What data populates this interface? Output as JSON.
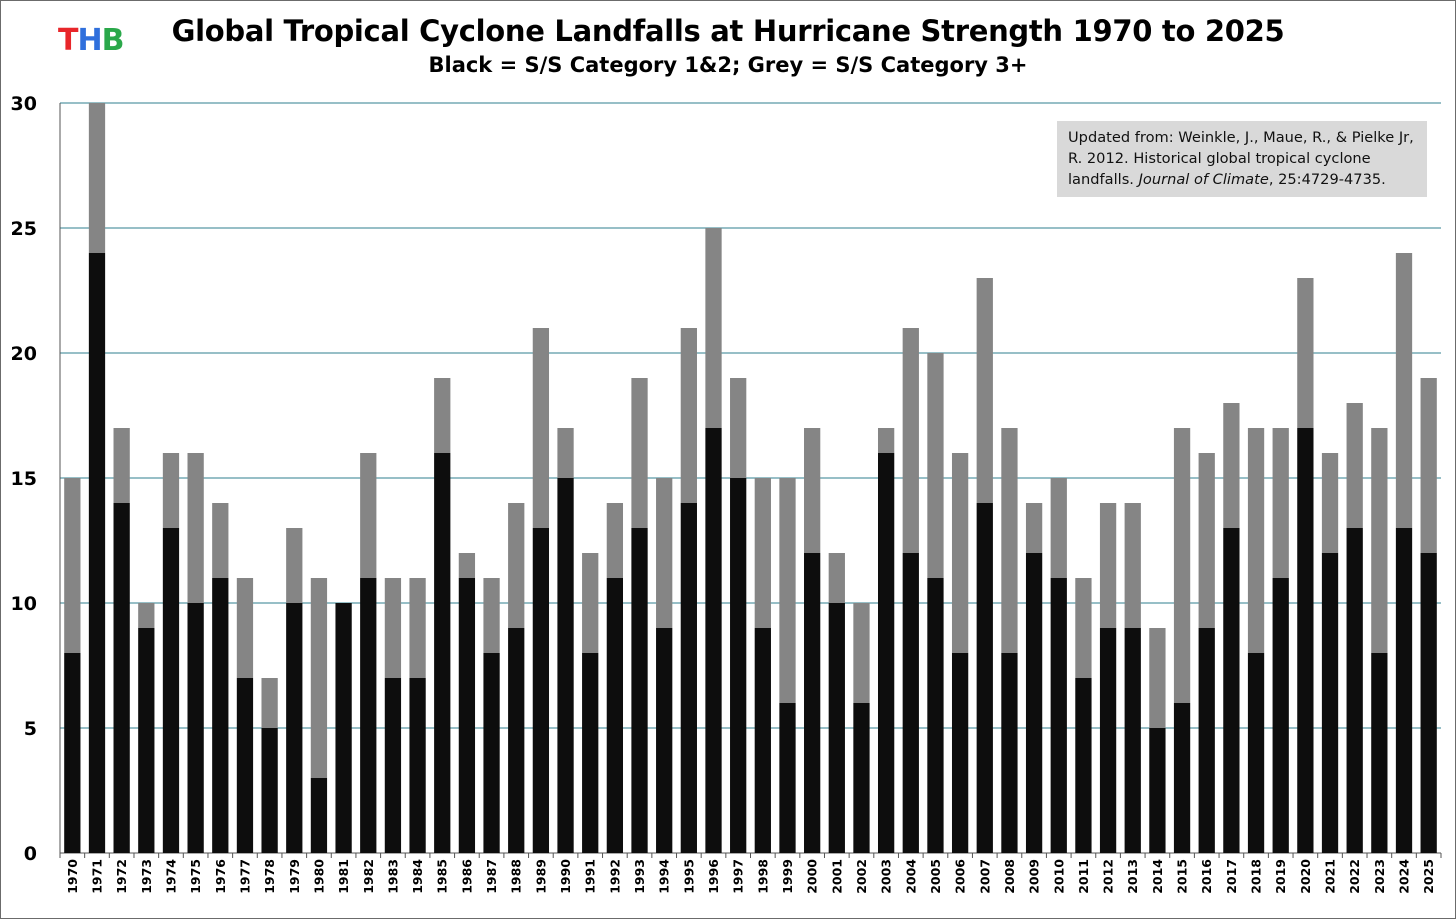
{
  "logo": {
    "letters": [
      "T",
      "H",
      "B"
    ],
    "colors": [
      "#e8262a",
      "#2f6fdc",
      "#2aa84a"
    ]
  },
  "title": "Global Tropical Cyclone Landfalls at Hurricane Strength 1970 to 2025",
  "subtitle": "Black = S/S Category 1&2; Grey = S/S Category 3+",
  "source": {
    "pre": "Updated from: Weinkle, J., Maue, R., & Pielke Jr, R. 2012. Historical global tropical cyclone landfalls.",
    "journal": "Journal of Climate",
    "post": ", 25:4729-4735."
  },
  "colors": {
    "cat12": "#0d0d0d",
    "cat3plus": "#858585",
    "grid": "#2f7f8f"
  },
  "chart_data": {
    "type": "bar",
    "stacked": true,
    "title": "Global Tropical Cyclone Landfalls at Hurricane Strength 1970 to 2025",
    "subtitle": "Black = S/S Category 1&2; Grey = S/S Category 3+",
    "xlabel": "",
    "ylabel": "",
    "ylim": [
      0,
      30
    ],
    "yticks": [
      0,
      5,
      10,
      15,
      20,
      25,
      30
    ],
    "grid": true,
    "categories": [
      "1970",
      "1971",
      "1972",
      "1973",
      "1974",
      "1975",
      "1976",
      "1977",
      "1978",
      "1979",
      "1980",
      "1981",
      "1982",
      "1983",
      "1984",
      "1985",
      "1986",
      "1987",
      "1988",
      "1989",
      "1990",
      "1991",
      "1992",
      "1993",
      "1994",
      "1995",
      "1996",
      "1997",
      "1998",
      "1999",
      "2000",
      "2001",
      "2002",
      "2003",
      "2004",
      "2005",
      "2006",
      "2007",
      "2008",
      "2009",
      "2010",
      "2011",
      "2012",
      "2013",
      "2014",
      "2015",
      "2016",
      "2017",
      "2018",
      "2019",
      "2020",
      "2021",
      "2022",
      "2023",
      "2024",
      "2025"
    ],
    "series": [
      {
        "color": "#0d0d0d",
        "values": [
          8,
          24,
          14,
          9,
          13,
          10,
          11,
          7,
          5,
          10,
          3,
          10,
          11,
          7,
          7,
          16,
          11,
          8,
          9,
          13,
          15,
          8,
          11,
          13,
          9,
          14,
          17,
          15,
          9,
          6,
          12,
          10,
          6,
          16,
          12,
          11,
          8,
          14,
          8,
          12,
          11,
          7,
          9,
          9,
          5,
          6,
          9,
          13,
          8,
          11,
          17,
          12,
          13,
          8,
          13,
          12
        ]
      },
      {
        "color": "#858585",
        "values": [
          7,
          6,
          3,
          1,
          3,
          6,
          3,
          4,
          2,
          3,
          8,
          0,
          5,
          4,
          4,
          3,
          1,
          3,
          5,
          8,
          2,
          4,
          3,
          6,
          6,
          7,
          8,
          4,
          6,
          9,
          5,
          2,
          4,
          1,
          9,
          9,
          8,
          9,
          9,
          2,
          4,
          4,
          5,
          5,
          4,
          11,
          7,
          5,
          9,
          6,
          6,
          4,
          5,
          9,
          11,
          7
        ]
      }
    ],
    "totals": [
      15,
      30,
      17,
      10,
      16,
      16,
      14,
      11,
      7,
      13,
      11,
      10,
      16,
      11,
      11,
      19,
      12,
      11,
      14,
      21,
      17,
      12,
      14,
      19,
      15,
      21,
      25,
      19,
      15,
      15,
      17,
      12,
      10,
      17,
      21,
      20,
      16,
      23,
      17,
      14,
      15,
      11,
      14,
      14,
      9,
      17,
      16,
      18,
      17,
      17,
      23,
      16,
      18,
      17,
      24,
      19
    ]
  }
}
